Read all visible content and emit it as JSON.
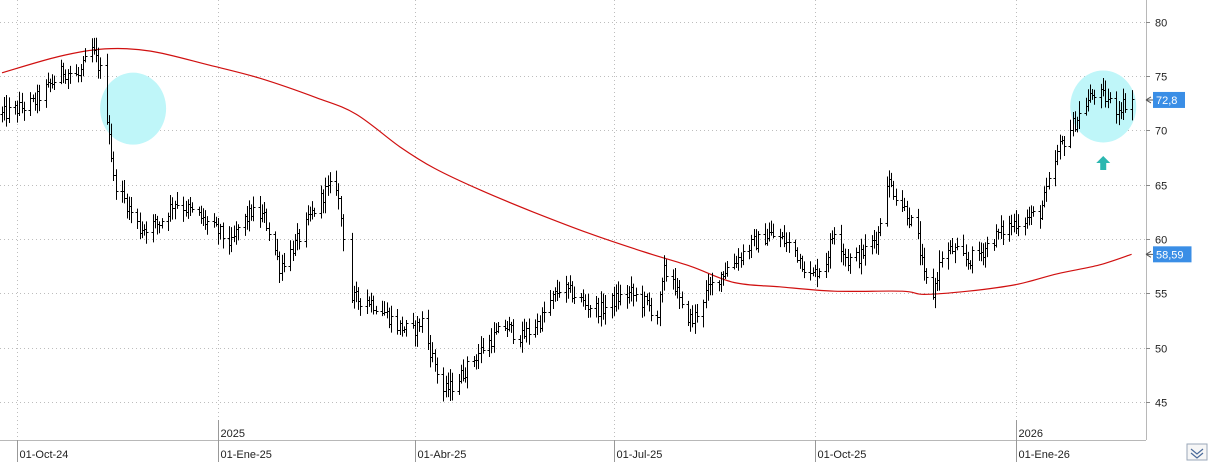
{
  "chart_data": {
    "type": "ohlc",
    "title": "",
    "xlabel": "",
    "ylabel": "",
    "ylim": [
      41.5,
      82
    ],
    "grid": true,
    "legend": "none",
    "y_ticks": [
      "45",
      "50",
      "55",
      "60",
      "65",
      "70",
      "75",
      "80"
    ],
    "x_ticks": [
      {
        "date": "2024-10-01",
        "label": "01-Oct-24"
      },
      {
        "date": "2025-01-01",
        "label": "01-Ene-25"
      },
      {
        "date": "2025-04-01",
        "label": "01-Abr-25"
      },
      {
        "date": "2025-07-01",
        "label": "01-Jul-25"
      },
      {
        "date": "2025-10-01",
        "label": "01-Oct-25"
      },
      {
        "date": "2026-01-01",
        "label": "01-Ene-26"
      }
    ],
    "year_markers": [
      {
        "date": "2025-01-01",
        "label": "2025"
      },
      {
        "date": "2026-01-01",
        "label": "2026"
      }
    ],
    "x_start": "2024-09-24",
    "x_end": "2026-02-25",
    "price_series": {
      "name": "",
      "color": "#000000",
      "anchors": [
        [
          "2024-09-24",
          71.5
        ],
        [
          "2024-10-08",
          72.5
        ],
        [
          "2024-10-22",
          75.5
        ],
        [
          "2024-10-29",
          75.0
        ],
        [
          "2024-11-04",
          77.5
        ],
        [
          "2024-11-08",
          75.5
        ],
        [
          "2024-11-12",
          70.0
        ],
        [
          "2024-11-14",
          65.5
        ],
        [
          "2024-11-18",
          64.0
        ],
        [
          "2024-11-26",
          61.0
        ],
        [
          "2024-12-05",
          61.5
        ],
        [
          "2024-12-12",
          63.5
        ],
        [
          "2024-12-20",
          62.5
        ],
        [
          "2024-12-27",
          61.5
        ],
        [
          "2025-01-02",
          60.5
        ],
        [
          "2025-01-07",
          59.5
        ],
        [
          "2025-01-10",
          61.0
        ],
        [
          "2025-01-16",
          62.5
        ],
        [
          "2025-01-22",
          62.0
        ],
        [
          "2025-01-27",
          59.0
        ],
        [
          "2025-01-29",
          57.5
        ],
        [
          "2025-02-05",
          59.5
        ],
        [
          "2025-02-12",
          62.0
        ],
        [
          "2025-02-19",
          64.5
        ],
        [
          "2025-02-24",
          65.0
        ],
        [
          "2025-03-03",
          54.5
        ],
        [
          "2025-03-10",
          54.5
        ],
        [
          "2025-03-17",
          53.5
        ],
        [
          "2025-03-24",
          52.0
        ],
        [
          "2025-03-31",
          51.5
        ],
        [
          "2025-04-04",
          52.5
        ],
        [
          "2025-04-07",
          50.5
        ],
        [
          "2025-04-10",
          48.5
        ],
        [
          "2025-04-14",
          46.0
        ],
        [
          "2025-04-18",
          46.5
        ],
        [
          "2025-04-24",
          48.0
        ],
        [
          "2025-05-02",
          50.0
        ],
        [
          "2025-05-12",
          52.0
        ],
        [
          "2025-05-20",
          51.0
        ],
        [
          "2025-05-28",
          52.5
        ],
        [
          "2025-06-06",
          55.5
        ],
        [
          "2025-06-12",
          55.0
        ],
        [
          "2025-06-18",
          54.0
        ],
        [
          "2025-06-25",
          53.5
        ],
        [
          "2025-07-02",
          54.5
        ],
        [
          "2025-07-09",
          55.0
        ],
        [
          "2025-07-16",
          54.0
        ],
        [
          "2025-07-21",
          53.0
        ],
        [
          "2025-07-24",
          57.0
        ],
        [
          "2025-07-28",
          56.5
        ],
        [
          "2025-08-01",
          53.5
        ],
        [
          "2025-08-06",
          52.5
        ],
        [
          "2025-08-12",
          55.0
        ],
        [
          "2025-08-20",
          57.0
        ],
        [
          "2025-09-02",
          59.5
        ],
        [
          "2025-09-10",
          60.5
        ],
        [
          "2025-09-16",
          60.0
        ],
        [
          "2025-09-22",
          59.0
        ],
        [
          "2025-09-29",
          56.5
        ],
        [
          "2025-10-06",
          58.0
        ],
        [
          "2025-10-10",
          61.0
        ],
        [
          "2025-10-16",
          58.0
        ],
        [
          "2025-10-22",
          58.5
        ],
        [
          "2025-10-30",
          60.5
        ],
        [
          "2025-11-03",
          65.5
        ],
        [
          "2025-11-06",
          64.5
        ],
        [
          "2025-11-12",
          62.5
        ],
        [
          "2025-11-17",
          60.0
        ],
        [
          "2025-11-20",
          56.5
        ],
        [
          "2025-11-24",
          55.0
        ],
        [
          "2025-11-28",
          58.5
        ],
        [
          "2025-12-03",
          59.0
        ],
        [
          "2025-12-10",
          58.0
        ],
        [
          "2025-12-17",
          59.0
        ],
        [
          "2025-12-24",
          60.5
        ],
        [
          "2025-12-31",
          61.5
        ],
        [
          "2026-01-07",
          62.0
        ],
        [
          "2026-01-12",
          62.5
        ],
        [
          "2026-01-16",
          65.0
        ],
        [
          "2026-01-21",
          68.5
        ],
        [
          "2026-01-27",
          70.5
        ],
        [
          "2026-02-02",
          72.5
        ],
        [
          "2026-02-06",
          73.5
        ],
        [
          "2026-02-11",
          73.0
        ],
        [
          "2026-02-16",
          72.0
        ],
        [
          "2026-02-23",
          73.0
        ]
      ]
    },
    "moving_average": {
      "name": "",
      "color": "#d01010",
      "points": [
        [
          "2024-09-24",
          75.3
        ],
        [
          "2024-10-20",
          76.8
        ],
        [
          "2024-11-10",
          77.5
        ],
        [
          "2024-12-01",
          77.3
        ],
        [
          "2024-12-28",
          76.0
        ],
        [
          "2025-01-20",
          74.8
        ],
        [
          "2025-02-15",
          73.0
        ],
        [
          "2025-03-05",
          71.5
        ],
        [
          "2025-03-25",
          68.5
        ],
        [
          "2025-04-10",
          66.5
        ],
        [
          "2025-05-01",
          64.5
        ],
        [
          "2025-05-25",
          62.5
        ],
        [
          "2025-06-20",
          60.5
        ],
        [
          "2025-07-15",
          58.8
        ],
        [
          "2025-08-05",
          57.5
        ],
        [
          "2025-08-25",
          56.0
        ],
        [
          "2025-09-15",
          55.6
        ],
        [
          "2025-10-10",
          55.2
        ],
        [
          "2025-11-10",
          55.2
        ],
        [
          "2025-11-20",
          54.9
        ],
        [
          "2025-12-10",
          55.2
        ],
        [
          "2026-01-01",
          55.8
        ],
        [
          "2026-01-20",
          56.8
        ],
        [
          "2026-02-08",
          57.6
        ],
        [
          "2026-02-23",
          58.59
        ]
      ]
    },
    "last_value_tags": [
      {
        "value": 72.8,
        "label": "72,8",
        "color": "#3a8ee6"
      },
      {
        "value": 58.59,
        "label": "58,59",
        "color": "#3a8ee6"
      }
    ],
    "annotations": [
      {
        "type": "ellipse",
        "date": "2024-11-23",
        "value": 72.0,
        "color": "#bff6f9"
      },
      {
        "type": "ellipse",
        "date": "2026-02-10",
        "value": 72.2,
        "color": "#bff6f9"
      },
      {
        "type": "arrow-up",
        "date": "2026-02-10",
        "value": 67.0,
        "color": "#2cb7b0"
      }
    ]
  }
}
